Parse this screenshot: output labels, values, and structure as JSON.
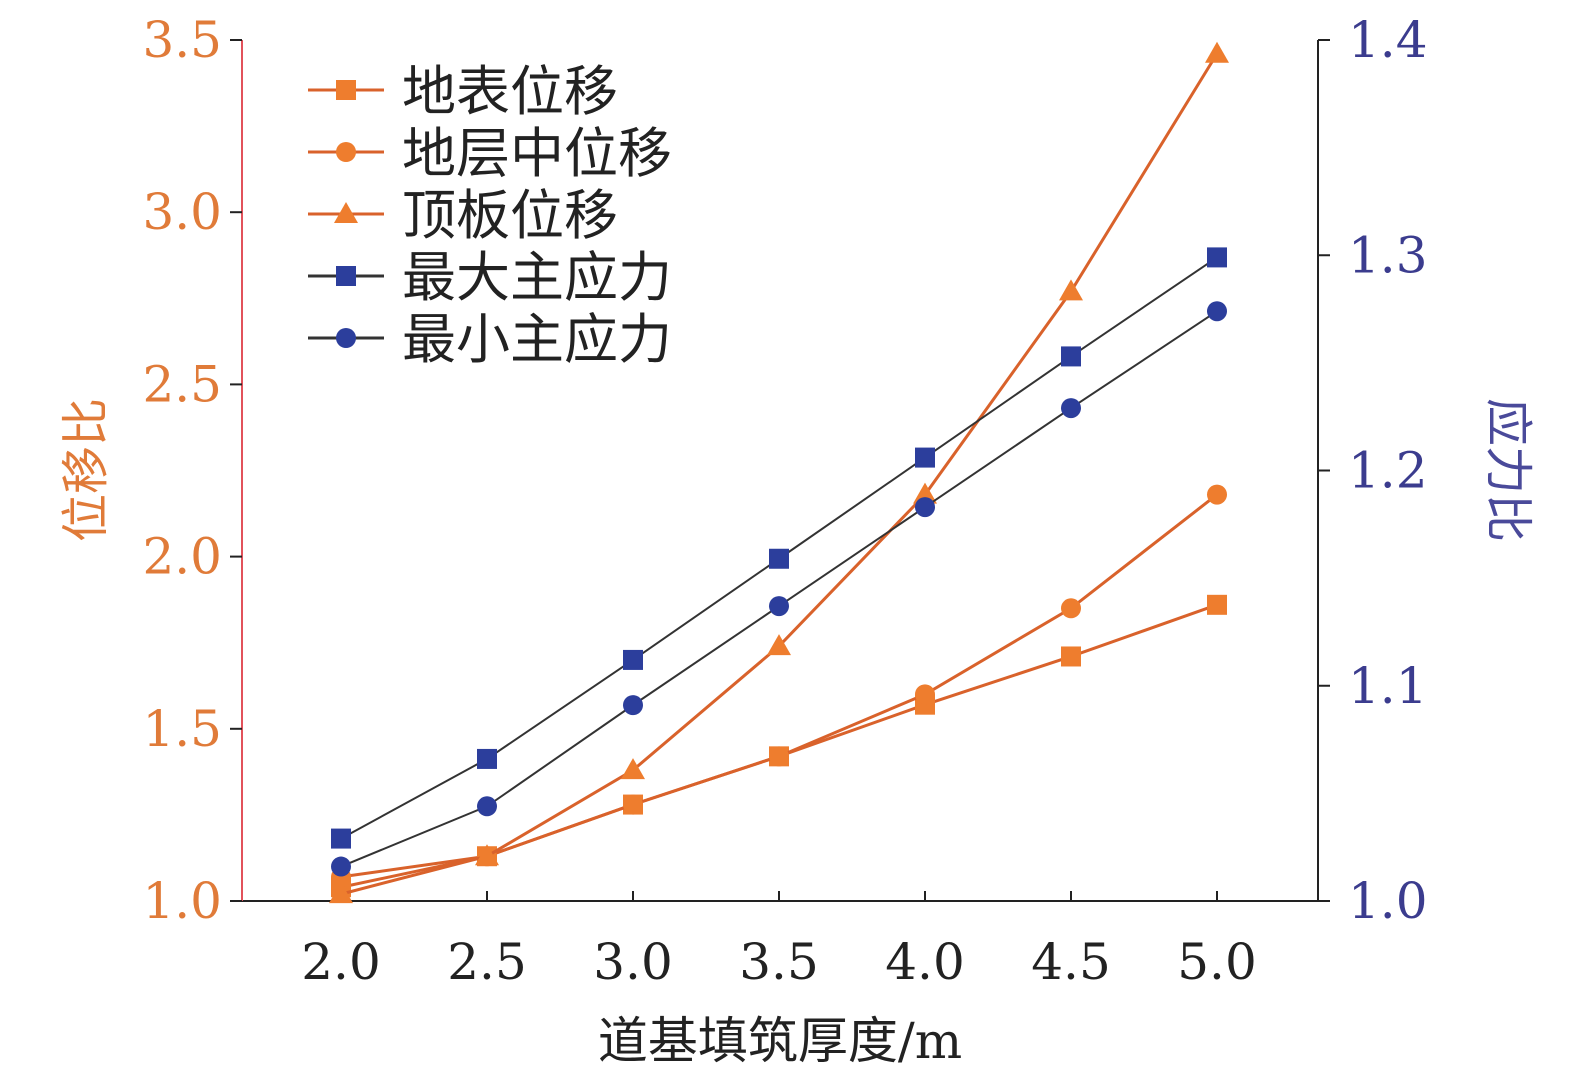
{
  "chart_data": {
    "type": "line",
    "xlabel": "道基填筑厚度/m",
    "ylabel_left": "位移比",
    "ylabel_right": "应力比",
    "x": [
      2.0,
      2.5,
      3.0,
      3.5,
      4.0,
      4.5,
      5.0
    ],
    "x_ticks": [
      "2.0",
      "2.5",
      "3.0",
      "3.5",
      "4.0",
      "4.5",
      "5.0"
    ],
    "ylim_left": [
      1.0,
      3.5
    ],
    "y_ticks_left": [
      "1.0",
      "1.5",
      "2.0",
      "2.5",
      "3.0",
      "3.5"
    ],
    "ylim_right": [
      1.0,
      1.4
    ],
    "y_ticks_right": [
      "1.0",
      "1.1",
      "1.2",
      "1.3",
      "1.4"
    ],
    "legend_position": "top-left",
    "grid": false,
    "colors": {
      "orange_marker": "#EE7D2E",
      "orange_line": "#D9622B",
      "blue_marker": "#2C3E9C",
      "dark_line": "#333333",
      "left_axis": "#E2525B",
      "left_tick": "#E07B39",
      "right_tick": "#3B3C8E"
    },
    "series": [
      {
        "name": "地表位移",
        "axis": "left",
        "marker": "square",
        "values": [
          1.04,
          1.13,
          1.28,
          1.42,
          1.57,
          1.71,
          1.86
        ]
      },
      {
        "name": "地层中位移",
        "axis": "left",
        "marker": "circle",
        "values": [
          1.07,
          1.13,
          1.28,
          1.42,
          1.6,
          1.85,
          2.18
        ]
      },
      {
        "name": "顶板位移",
        "axis": "left",
        "marker": "triangle",
        "values": [
          1.02,
          1.13,
          1.38,
          1.74,
          2.18,
          2.77,
          3.46
        ]
      },
      {
        "name": "最大主应力",
        "axis": "right",
        "marker": "square",
        "values": [
          1.029,
          1.066,
          1.112,
          1.159,
          1.206,
          1.253,
          1.299
        ]
      },
      {
        "name": "最小主应力",
        "axis": "right",
        "marker": "circle",
        "values": [
          1.016,
          1.044,
          1.091,
          1.137,
          1.183,
          1.229,
          1.274
        ]
      }
    ]
  }
}
